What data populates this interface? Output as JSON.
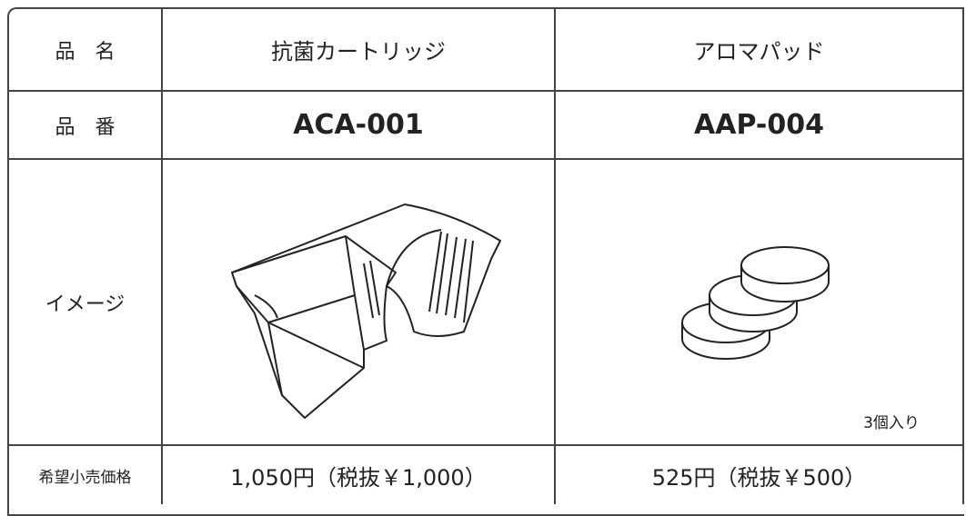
{
  "table": {
    "rows": [
      {
        "label": "品　名",
        "cells": [
          "抗菌カートリッジ",
          "アロマパッド"
        ]
      },
      {
        "label": "品　番",
        "cells": [
          "ACA-001",
          "AAP-004"
        ]
      },
      {
        "label": "イメージ",
        "note": "3個入り"
      },
      {
        "label": "希望小売価格",
        "cells": [
          "1,050円（税抜￥1,000）",
          "525円（税抜￥500）"
        ]
      }
    ]
  }
}
